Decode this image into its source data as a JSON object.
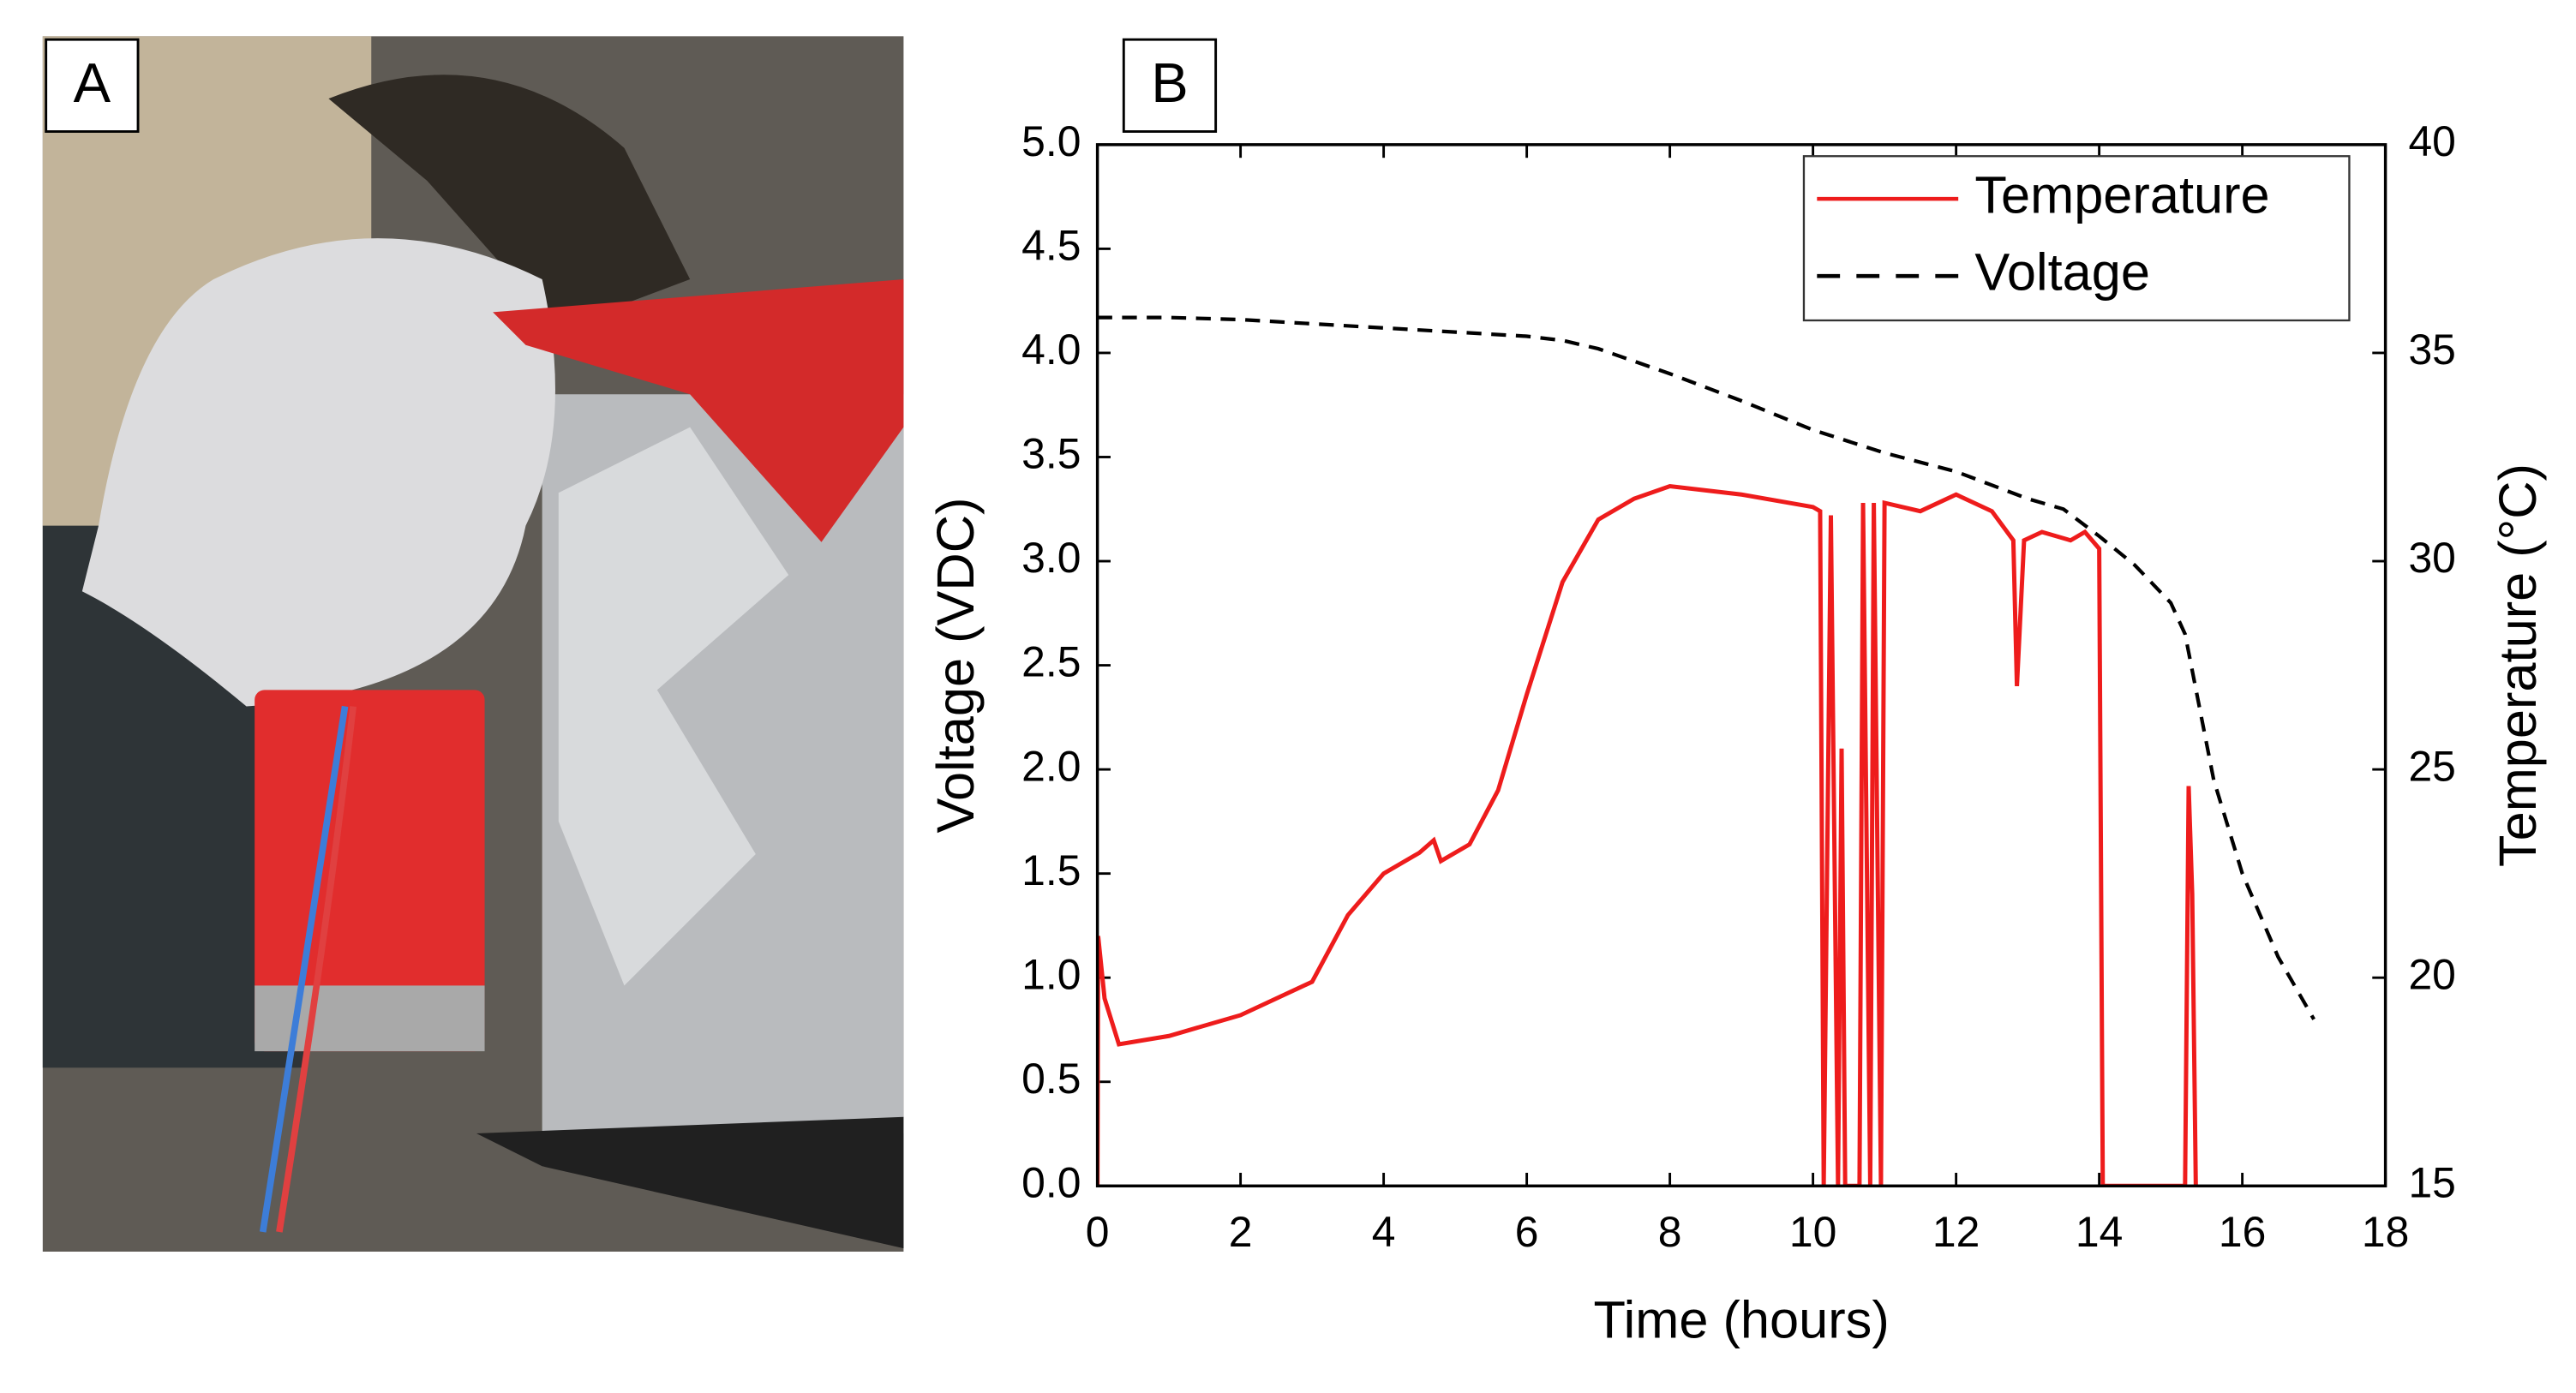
{
  "panels": {
    "a": "A",
    "b": "B"
  },
  "chart_data": {
    "type": "line",
    "xlabel": "Time (hours)",
    "ylabel": "Voltage (VDC)",
    "y2label": "Temperature (°C)",
    "xlim": [
      0,
      18
    ],
    "xticks": [
      0,
      2,
      4,
      6,
      8,
      10,
      12,
      14,
      16,
      18
    ],
    "ylim": [
      0,
      5
    ],
    "yticks": [
      {
        "value": 0,
        "label": "0.0"
      },
      {
        "value": 0.5,
        "label": "0.5"
      },
      {
        "value": 1,
        "label": "1.0"
      },
      {
        "value": 1.5,
        "label": "1.5"
      },
      {
        "value": 2,
        "label": "2.0"
      },
      {
        "value": 2.5,
        "label": "2.5"
      },
      {
        "value": 3,
        "label": "3.0"
      },
      {
        "value": 3.5,
        "label": "3.5"
      },
      {
        "value": 4,
        "label": "4.0"
      },
      {
        "value": 4.5,
        "label": "4.5"
      },
      {
        "value": 5,
        "label": "5.0"
      }
    ],
    "y2lim": [
      15,
      40
    ],
    "y2ticks": [
      15,
      20,
      25,
      30,
      35,
      40
    ],
    "legend": "upper right",
    "series": [
      {
        "name": "Temperature",
        "color": "#ee1c1c",
        "linestyle": "solid",
        "axis": "y2",
        "x": [
          0,
          0.01,
          0.1,
          0.3,
          1,
          2,
          3,
          3.5,
          4,
          4.5,
          4.7,
          4.8,
          5.2,
          5.6,
          6,
          6.5,
          7,
          7.5,
          8,
          9,
          10,
          10.1,
          10.15,
          10.25,
          10.35,
          10.4,
          10.45,
          10.65,
          10.7,
          10.8,
          10.85,
          10.95,
          11,
          11.5,
          12,
          12.5,
          12.8,
          12.85,
          12.95,
          13.2,
          13.6,
          13.8,
          14,
          14.05,
          15.2,
          15.25,
          15.3,
          15.35
        ],
        "values": [
          15,
          21,
          19.5,
          18.4,
          18.6,
          19.1,
          19.9,
          21.5,
          22.5,
          23.0,
          23.3,
          22.8,
          23.2,
          24.5,
          26.8,
          29.5,
          31,
          31.5,
          31.8,
          31.6,
          31.3,
          31.2,
          15,
          31.1,
          15,
          25.5,
          15,
          15,
          31.4,
          15,
          31.4,
          15,
          31.4,
          31.2,
          31.6,
          31.2,
          30.5,
          27,
          30.5,
          30.7,
          30.5,
          30.7,
          30.3,
          15,
          15,
          24.6,
          22,
          15
        ]
      },
      {
        "name": "Voltage",
        "color": "#000000",
        "linestyle": "dashed",
        "x": [
          0,
          1,
          2,
          3,
          4,
          5,
          6,
          6.5,
          7,
          8,
          9,
          10,
          11,
          12,
          13,
          13.5,
          14,
          14.5,
          15,
          15.2,
          15.4,
          15.6,
          16,
          16.5,
          17
        ],
        "values": [
          4.17,
          4.17,
          4.16,
          4.14,
          4.12,
          4.1,
          4.08,
          4.06,
          4.02,
          3.9,
          3.77,
          3.63,
          3.52,
          3.43,
          3.3,
          3.25,
          3.12,
          2.98,
          2.8,
          2.65,
          2.3,
          1.95,
          1.5,
          1.1,
          0.8
        ]
      }
    ]
  }
}
